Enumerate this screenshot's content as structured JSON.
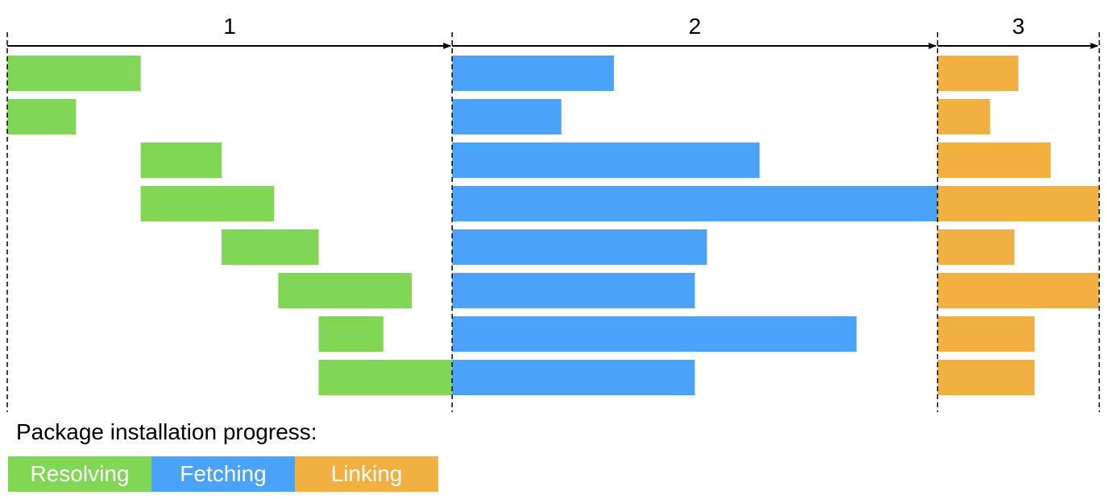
{
  "phases": [
    {
      "label": "1",
      "start": 0,
      "end": 11
    },
    {
      "label": "2",
      "start": 11,
      "end": 23
    },
    {
      "label": "3",
      "start": 23,
      "end": 27
    }
  ],
  "legend": {
    "title": "Package installation progress:",
    "items": [
      {
        "label": "Resolving",
        "color": "#80d655"
      },
      {
        "label": "Fetching",
        "color": "#4aa3f8"
      },
      {
        "label": "Linking",
        "color": "#f2b040"
      }
    ]
  },
  "colors": {
    "resolving": "#80d655",
    "fetching": "#4aa3f8",
    "linking": "#f2b040",
    "line": "#000000"
  },
  "packages": [
    {
      "resolving": [
        0.0,
        3.3
      ],
      "fetching": [
        11.0,
        15.0
      ],
      "linking": [
        23.0,
        25.0
      ]
    },
    {
      "resolving": [
        0.0,
        1.7
      ],
      "fetching": [
        11.0,
        13.7
      ],
      "linking": [
        23.0,
        24.3
      ]
    },
    {
      "resolving": [
        3.3,
        5.3
      ],
      "fetching": [
        11.0,
        18.6
      ],
      "linking": [
        23.0,
        25.8
      ]
    },
    {
      "resolving": [
        3.3,
        6.6
      ],
      "fetching": [
        11.0,
        23.0
      ],
      "linking": [
        23.0,
        27.0
      ]
    },
    {
      "resolving": [
        5.3,
        7.7
      ],
      "fetching": [
        11.0,
        17.3
      ],
      "linking": [
        23.0,
        24.9
      ]
    },
    {
      "resolving": [
        6.7,
        10.0
      ],
      "fetching": [
        11.0,
        17.0
      ],
      "linking": [
        23.0,
        27.0
      ]
    },
    {
      "resolving": [
        7.7,
        9.3
      ],
      "fetching": [
        11.0,
        21.0
      ],
      "linking": [
        23.0,
        25.4
      ]
    },
    {
      "resolving": [
        7.7,
        11.0
      ],
      "fetching": [
        11.0,
        17.0
      ],
      "linking": [
        23.0,
        25.4
      ]
    }
  ]
}
